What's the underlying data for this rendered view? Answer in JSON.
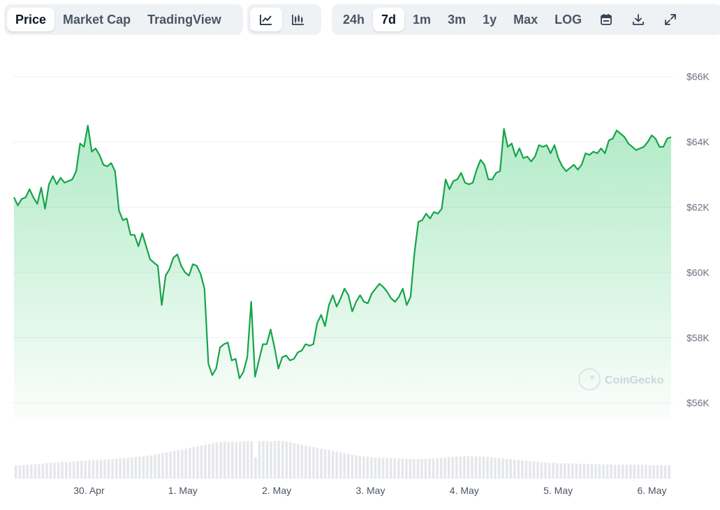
{
  "toolbar": {
    "tabs": [
      {
        "label": "Price",
        "active": true
      },
      {
        "label": "Market Cap",
        "active": false
      },
      {
        "label": "TradingView",
        "active": false
      }
    ],
    "chart_types": [
      {
        "icon": "line-chart-icon",
        "active": true
      },
      {
        "icon": "candlestick-chart-icon",
        "active": false
      }
    ],
    "ranges": [
      {
        "label": "24h",
        "active": false
      },
      {
        "label": "7d",
        "active": true
      },
      {
        "label": "1m",
        "active": false
      },
      {
        "label": "3m",
        "active": false
      },
      {
        "label": "1y",
        "active": false
      },
      {
        "label": "Max",
        "active": false
      },
      {
        "label": "LOG",
        "active": false
      }
    ],
    "actions": [
      "calendar-icon",
      "download-icon",
      "fullscreen-icon"
    ]
  },
  "watermark": "CoinGecko",
  "colors": {
    "line": "#16a34a",
    "fill": "#22c55e",
    "volume": "#e5e7eb",
    "grid": "#eef0f3"
  },
  "chart_data": {
    "type": "area",
    "ylim": [
      55500,
      67000
    ],
    "y_ticks": [
      {
        "value": 66000,
        "label": "$66K"
      },
      {
        "value": 64000,
        "label": "$64K"
      },
      {
        "value": 62000,
        "label": "$62K"
      },
      {
        "value": 60000,
        "label": "$60K"
      },
      {
        "value": 58000,
        "label": "$58K"
      },
      {
        "value": 56000,
        "label": "$56K"
      }
    ],
    "x_ticks": [
      {
        "t": 0.8,
        "label": "30. Apr"
      },
      {
        "t": 1.8,
        "label": "1. May"
      },
      {
        "t": 2.8,
        "label": "2. May"
      },
      {
        "t": 3.8,
        "label": "3. May"
      },
      {
        "t": 4.8,
        "label": "4. May"
      },
      {
        "t": 5.8,
        "label": "5. May"
      },
      {
        "t": 6.8,
        "label": "6. May"
      }
    ],
    "x_range": [
      0.0,
      7.005
    ],
    "grid": true,
    "series": [
      {
        "values": [
          62300,
          62050,
          62250,
          62300,
          62550,
          62300,
          62100,
          62600,
          61950,
          62700,
          62950,
          62700,
          62900,
          62750,
          62800,
          62850,
          63100,
          63950,
          63850,
          64500,
          63700,
          63800,
          63600,
          63300,
          63250,
          63350,
          63100,
          61900,
          61600,
          61650,
          61150,
          61150,
          60800,
          61200,
          60800,
          60400,
          60300,
          60200,
          59000,
          59900,
          60100,
          60450,
          60550,
          60200,
          60000,
          59900,
          60250,
          60200,
          59950,
          59500,
          57200,
          56850,
          57050,
          57700,
          57800,
          57850,
          57300,
          57350,
          56750,
          56950,
          57400,
          59100,
          56800,
          57300,
          57800,
          57800,
          58250,
          57700,
          57050,
          57400,
          57450,
          57300,
          57350,
          57550,
          57600,
          57800,
          57750,
          57800,
          58450,
          58700,
          58350,
          59000,
          59300,
          58950,
          59200,
          59500,
          59300,
          58800,
          59100,
          59300,
          59100,
          59050,
          59350,
          59500,
          59650,
          59550,
          59400,
          59200,
          59100,
          59250,
          59500,
          59000,
          59250,
          60600,
          61550,
          61600,
          61800,
          61650,
          61850,
          61800,
          61950,
          62850,
          62550,
          62800,
          62850,
          63050,
          62750,
          62700,
          62750,
          63150,
          63450,
          63300,
          62850,
          62850,
          63050,
          63100,
          64400,
          63850,
          63950,
          63550,
          63800,
          63500,
          63550,
          63400,
          63550,
          63900,
          63850,
          63900,
          63650,
          63900,
          63500,
          63250,
          63100,
          63200,
          63300,
          63150,
          63300,
          63650,
          63600,
          63700,
          63650,
          63800,
          63650,
          64050,
          64100,
          64350,
          64250,
          64150,
          63950,
          63850,
          63750,
          63800,
          63850,
          64000,
          64200,
          64100,
          63850,
          63850,
          64100,
          64150
        ]
      }
    ],
    "volume": [
      0.34,
      0.34,
      0.35,
      0.36,
      0.36,
      0.37,
      0.38,
      0.39,
      0.4,
      0.41,
      0.41,
      0.42,
      0.43,
      0.43,
      0.44,
      0.45,
      0.45,
      0.46,
      0.46,
      0.47,
      0.48,
      0.48,
      0.49,
      0.49,
      0.5,
      0.51,
      0.52,
      0.52,
      0.53,
      0.54,
      0.55,
      0.56,
      0.57,
      0.58,
      0.59,
      0.6,
      0.62,
      0.64,
      0.66,
      0.68,
      0.7,
      0.72,
      0.74,
      0.76,
      0.78,
      0.8,
      0.82,
      0.84,
      0.86,
      0.88,
      0.9,
      0.92,
      0.94,
      0.95,
      0.96,
      0.96,
      0.96,
      0.95,
      0.96,
      0.96,
      0.97,
      0.97,
      0.55,
      0.97,
      0.98,
      0.97,
      0.96,
      0.98,
      0.98,
      0.97,
      0.96,
      0.94,
      0.92,
      0.9,
      0.88,
      0.86,
      0.84,
      0.82,
      0.8,
      0.78,
      0.76,
      0.74,
      0.72,
      0.7,
      0.68,
      0.66,
      0.64,
      0.62,
      0.6,
      0.59,
      0.58,
      0.57,
      0.56,
      0.55,
      0.55,
      0.54,
      0.54,
      0.53,
      0.53,
      0.52,
      0.52,
      0.52,
      0.51,
      0.51,
      0.51,
      0.51,
      0.51,
      0.52,
      0.52,
      0.53,
      0.54,
      0.55,
      0.56,
      0.56,
      0.57,
      0.57,
      0.58,
      0.58,
      0.58,
      0.58,
      0.57,
      0.57,
      0.56,
      0.55,
      0.54,
      0.53,
      0.52,
      0.51,
      0.5,
      0.49,
      0.48,
      0.47,
      0.46,
      0.45,
      0.44,
      0.43,
      0.42,
      0.42,
      0.41,
      0.41,
      0.4,
      0.4,
      0.4,
      0.39,
      0.39,
      0.39,
      0.38,
      0.38,
      0.38,
      0.38,
      0.37,
      0.37,
      0.37,
      0.37,
      0.37,
      0.36,
      0.36,
      0.36,
      0.36,
      0.36,
      0.36,
      0.36,
      0.36,
      0.36,
      0.35,
      0.35,
      0.35,
      0.35,
      0.35,
      0.35
    ]
  }
}
